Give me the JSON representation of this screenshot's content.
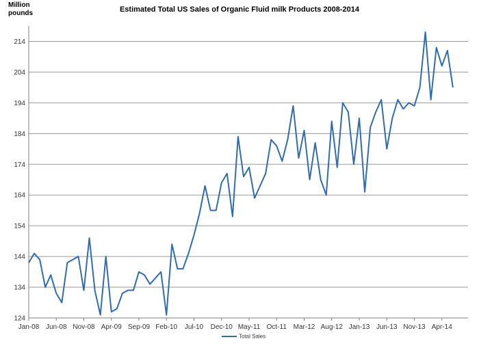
{
  "chart_data": {
    "type": "line",
    "title": "Estimated Total US Sales of Organic Fluid milk Products 2008-2014",
    "ylabel_line1": "Million",
    "ylabel_line2": "pounds",
    "xlabel": "",
    "ylim": [
      124,
      219
    ],
    "yticks": [
      124,
      134,
      144,
      154,
      164,
      174,
      184,
      194,
      204,
      214
    ],
    "xticks": [
      {
        "label": "Jan-08",
        "index": 0
      },
      {
        "label": "Jun-08",
        "index": 5
      },
      {
        "label": "Nov-08",
        "index": 10
      },
      {
        "label": "Apr-09",
        "index": 15
      },
      {
        "label": "Sep-09",
        "index": 20
      },
      {
        "label": "Feb-10",
        "index": 25
      },
      {
        "label": "Jul-10",
        "index": 30
      },
      {
        "label": "Dec-10",
        "index": 35
      },
      {
        "label": "May-11",
        "index": 40
      },
      {
        "label": "Oct-11",
        "index": 45
      },
      {
        "label": "Mar-12",
        "index": 50
      },
      {
        "label": "Aug-12",
        "index": 55
      },
      {
        "label": "Jan-13",
        "index": 60
      },
      {
        "label": "Jun-13",
        "index": 65
      },
      {
        "label": "Nov-13",
        "index": 70
      },
      {
        "label": "Apr-14",
        "index": 75
      }
    ],
    "grid": true,
    "legend_position": "bottom",
    "series": [
      {
        "name": "Total Sales",
        "color": "#2e6bb2",
        "values": [
          142,
          145,
          143,
          134,
          138,
          132,
          129,
          142,
          143,
          144,
          133,
          150,
          133,
          125,
          144,
          126,
          127,
          132,
          133,
          133,
          139,
          138,
          135,
          137,
          139,
          125,
          148,
          140,
          140,
          145,
          151,
          158,
          167,
          159,
          159,
          168,
          171,
          157,
          183,
          170,
          173,
          163,
          167,
          171,
          182,
          180,
          175,
          182,
          193,
          176,
          185,
          169,
          181,
          169,
          164,
          188,
          173,
          194,
          191,
          174,
          189,
          165,
          186,
          191,
          195,
          179,
          189,
          195,
          192,
          194,
          193,
          199,
          217,
          195,
          212,
          206,
          211,
          199
        ]
      }
    ]
  }
}
